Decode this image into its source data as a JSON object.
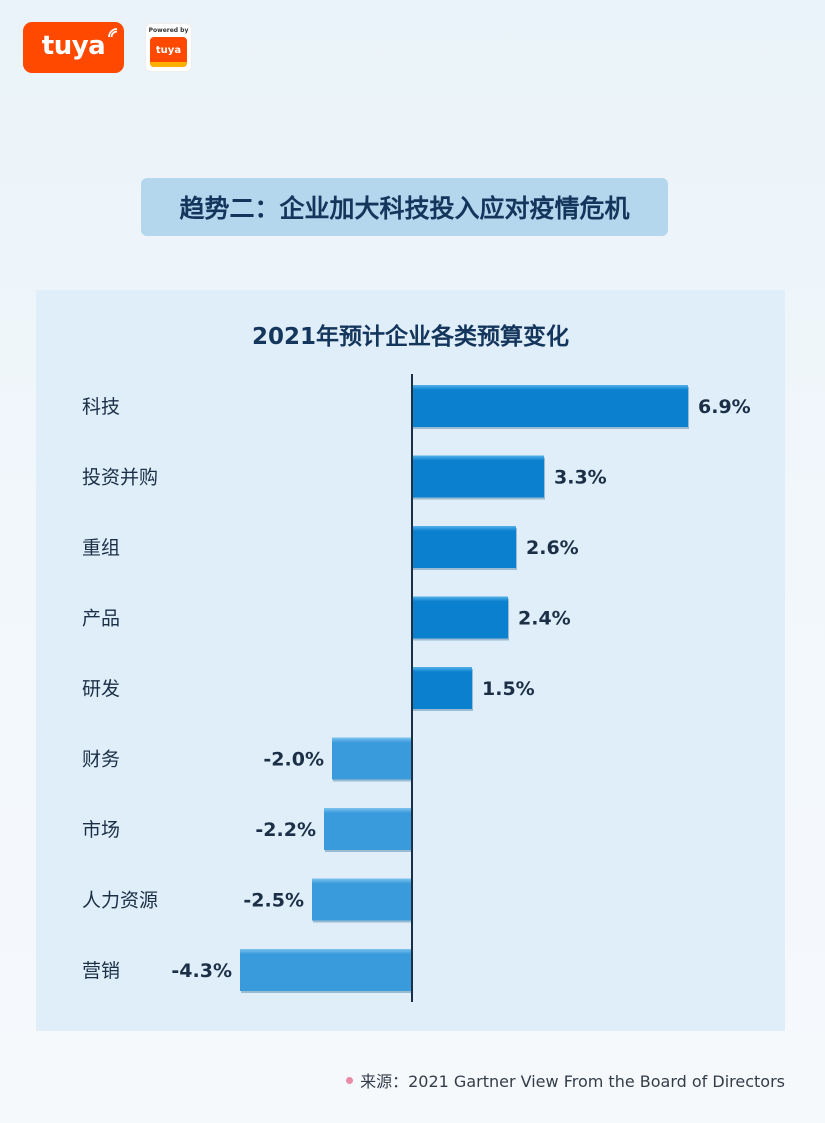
{
  "brand": {
    "logo_text": "tuya",
    "powered_by": "Powered by",
    "powered_logo_text": "tuya"
  },
  "headline": "趋势二：企业加大科技投入应对疫情危机",
  "colors": {
    "brand_orange": "#ff4800",
    "bar_positive": "#0a80cf",
    "bar_negative": "#3a9bdc",
    "axis": "#1b2f47"
  },
  "chart_data": {
    "type": "bar",
    "orientation": "horizontal",
    "title": "2021年预计企业各类预算变化",
    "categories": [
      "科技",
      "投资并购",
      "重组",
      "产品",
      "研发",
      "财务",
      "市场",
      "人力资源",
      "营销"
    ],
    "values": [
      6.9,
      3.3,
      2.6,
      2.4,
      1.5,
      -2.0,
      -2.2,
      -2.5,
      -4.3
    ],
    "value_labels": [
      "6.9%",
      "3.3%",
      "2.6%",
      "2.4%",
      "1.5%",
      "-2.0%",
      "-2.2%",
      "-2.5%",
      "-4.3%"
    ],
    "unit": "%",
    "xlabel": "",
    "ylabel": "",
    "grid": false,
    "legend": "none"
  },
  "source": "来源：2021 Gartner View From the Board of Directors"
}
